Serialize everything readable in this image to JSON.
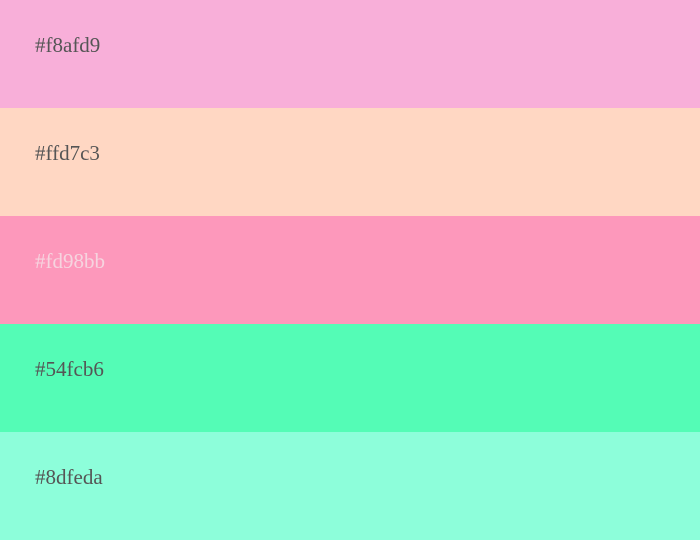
{
  "palette": {
    "swatches": [
      {
        "hex": "#f8afd9",
        "color": "#f8afd9",
        "text_color": "#555555"
      },
      {
        "hex": "#ffd7c3",
        "color": "#ffd7c3",
        "text_color": "#555555"
      },
      {
        "hex": "#fd98bb",
        "color": "#fd98bb",
        "text_color": "#f6d4df"
      },
      {
        "hex": "#54fcb6",
        "color": "#54fcb6",
        "text_color": "#555555"
      },
      {
        "hex": "#8dfeda",
        "color": "#8dfeda",
        "text_color": "#555555"
      }
    ]
  }
}
